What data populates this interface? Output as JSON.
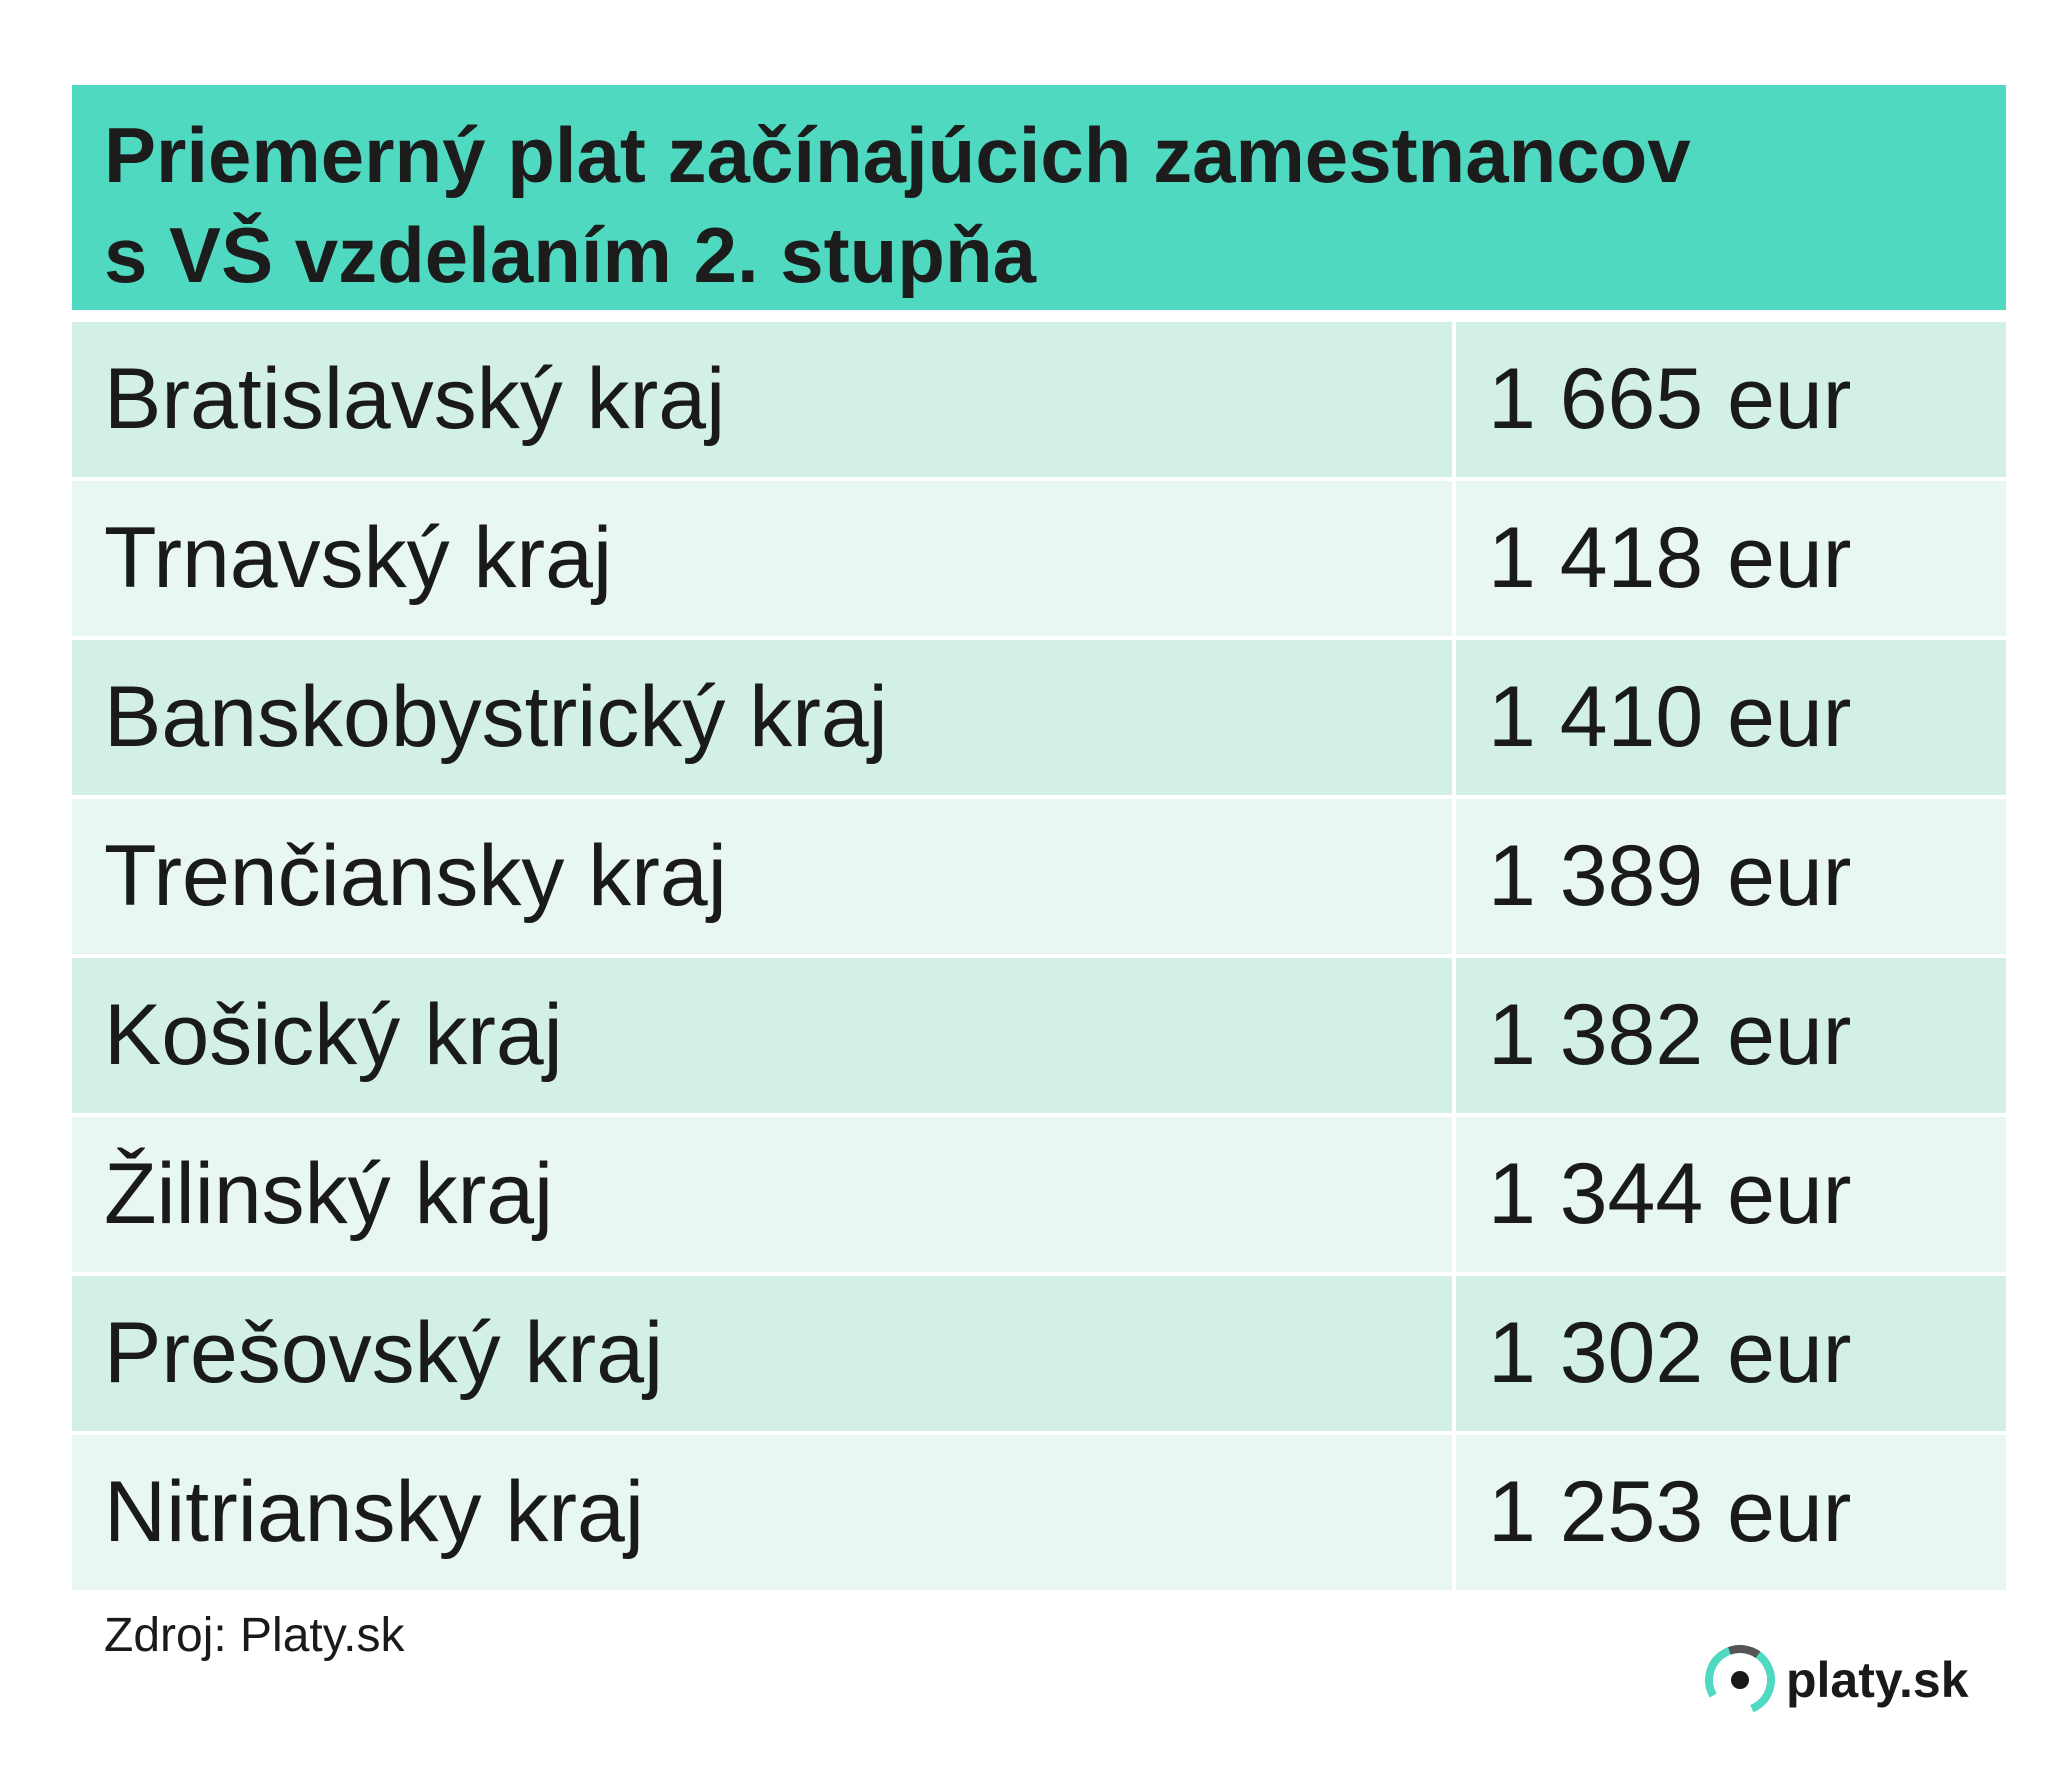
{
  "header": {
    "title_line1": "Priemerný plat začínajúcich zamestnancov",
    "title_line2": "s VŠ vzdelaním 2. stupňa"
  },
  "table": {
    "rows": [
      {
        "region": "Bratislavský kraj",
        "salary": "1 665 eur"
      },
      {
        "region": "Trnavský kraj",
        "salary": "1 418 eur"
      },
      {
        "region": "Banskobystrický kraj",
        "salary": "1 410 eur"
      },
      {
        "region": "Trenčiansky kraj",
        "salary": "1 389 eur"
      },
      {
        "region": "Košický kraj",
        "salary": "1 382 eur"
      },
      {
        "region": "Žilinský kraj",
        "salary": "1 344 eur"
      },
      {
        "region": "Prešovský kraj",
        "salary": "1 302 eur"
      },
      {
        "region": "Nitriansky kraj",
        "salary": "1 253 eur"
      }
    ]
  },
  "footer": {
    "source": "Zdroj: Platy.sk",
    "logo_text": "platy.sk",
    "logo_icon": "platy-logo-icon"
  },
  "colors": {
    "header_bg": "#4fd9c1",
    "row_dark": "#d3f0e7",
    "row_light": "#e8f7f3",
    "logo_ring": "#4fd9c1",
    "logo_ring_dark": "#555555"
  }
}
